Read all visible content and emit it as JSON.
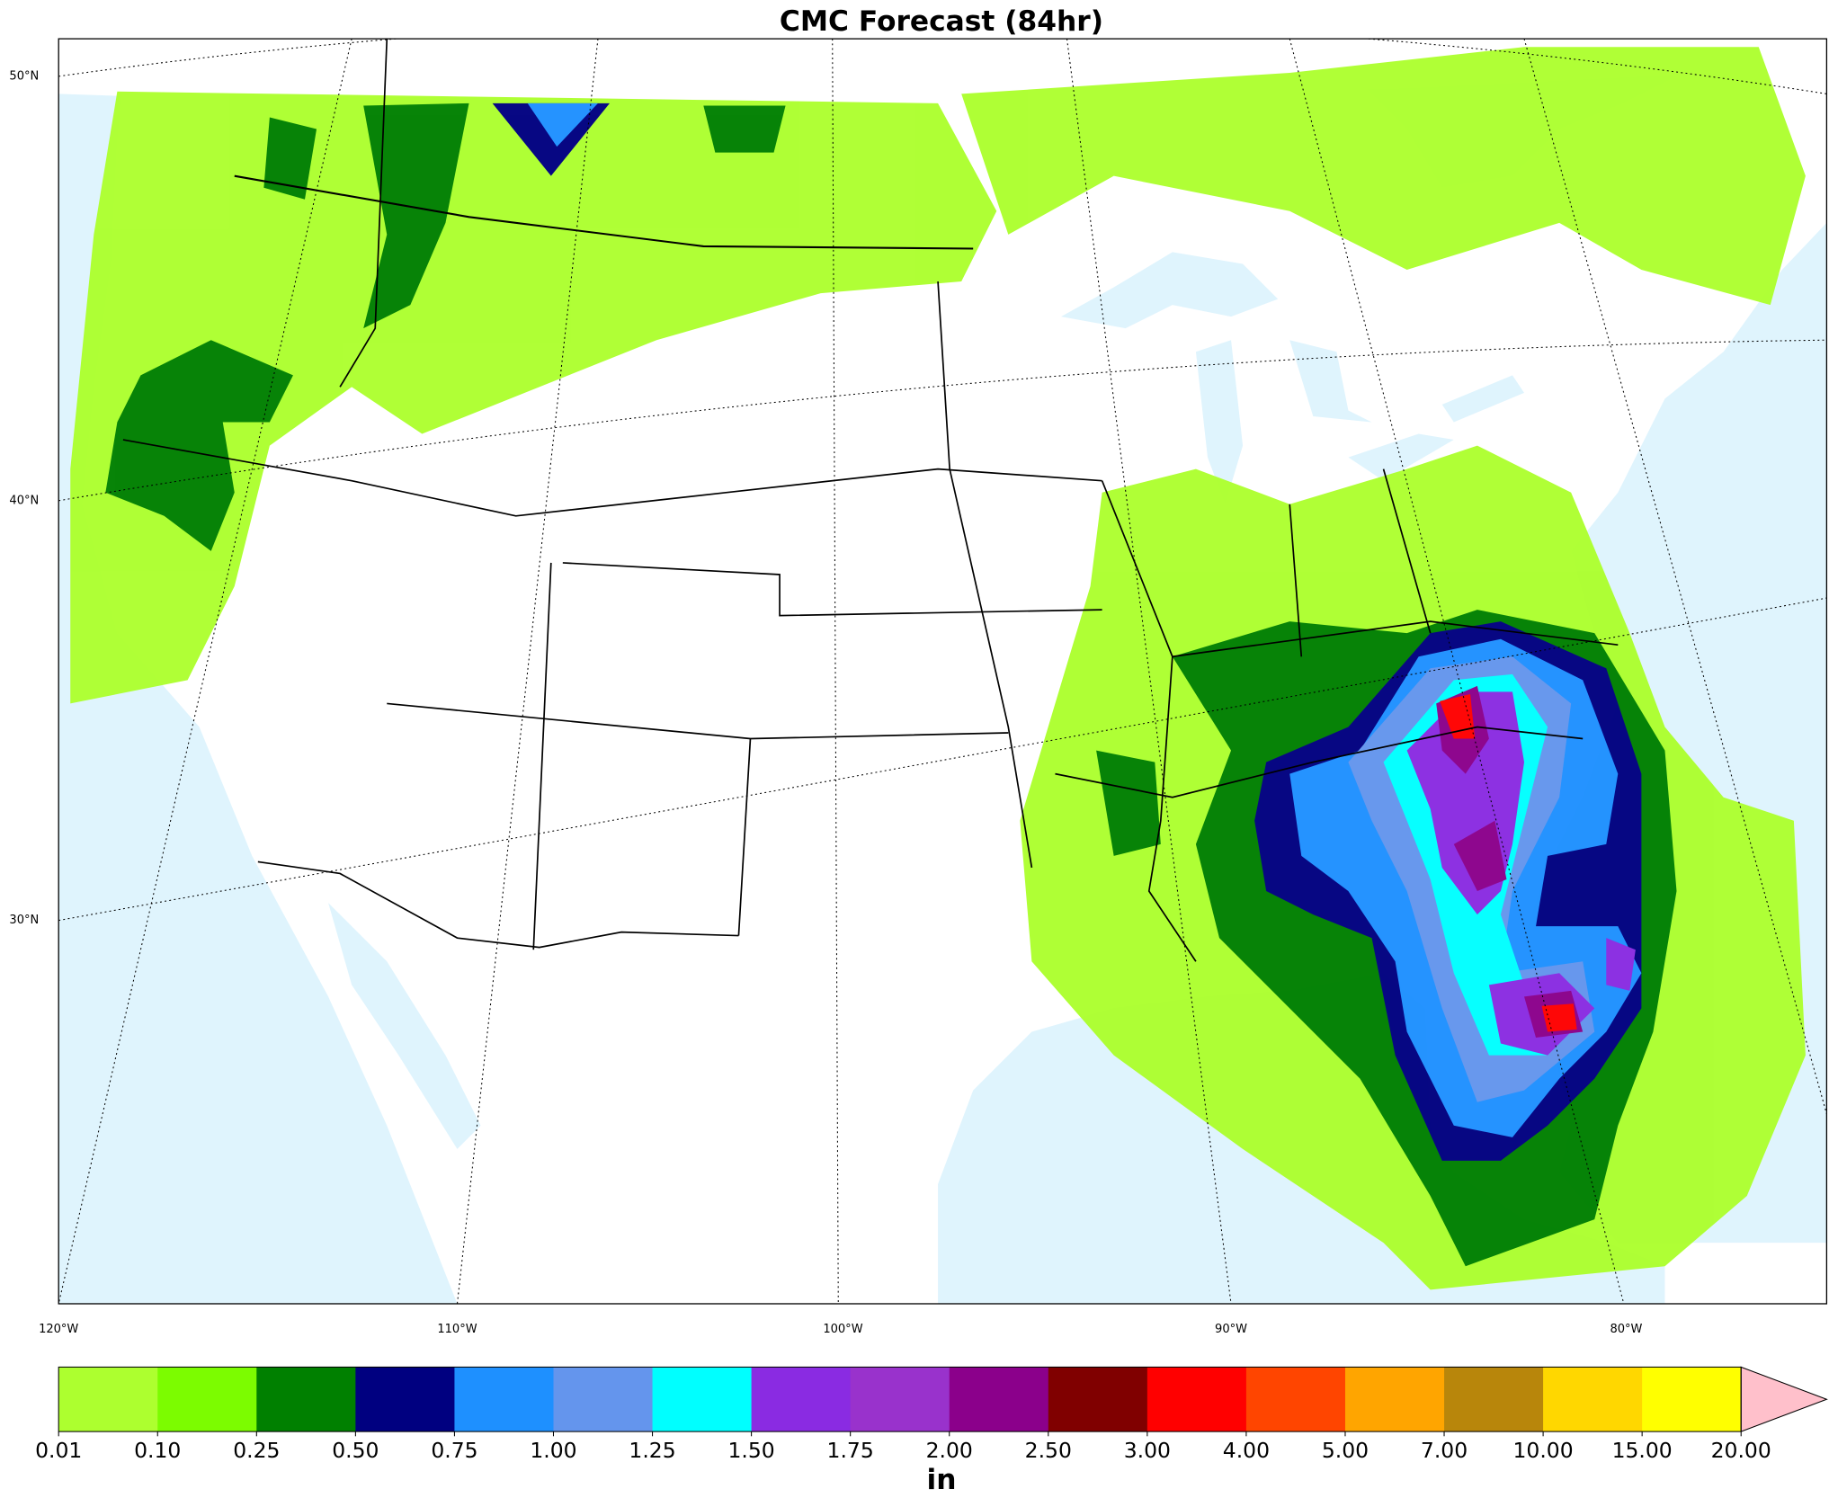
{
  "title": "CMC Forecast (84hr)",
  "lat_labels": [
    "50°N",
    "40°N",
    "30°N"
  ],
  "lon_labels": [
    "120°W",
    "110°W",
    "100°W",
    "90°W",
    "80°W"
  ],
  "colorbar": {
    "levels": [
      0.01,
      {
        "value": 0.1,
        "label": "0.10"
      },
      0.25,
      {
        "value": 0.5,
        "label": "0.50"
      },
      0.75,
      {
        "value": 1,
        "label": "1.00"
      },
      1.25,
      {
        "value": 1.5,
        "label": "1.50"
      },
      1.75,
      {
        "value": 2,
        "label": "2.00"
      },
      {
        "value": 2.5,
        "label": "2.50"
      },
      {
        "value": 3,
        "label": "3.00"
      },
      {
        "value": 4,
        "label": "4.00"
      },
      {
        "value": 5,
        "label": "5.00"
      },
      {
        "value": 7,
        "label": "7.00"
      },
      {
        "value": 10,
        "label": "10.00"
      },
      {
        "value": 15,
        "label": "15.00"
      },
      {
        "value": 20,
        "label": "20.00"
      }
    ],
    "colors": [
      "#adff2f",
      "#7cfc00",
      "#008000",
      "#000080",
      "#1e90ff",
      "#6495ed",
      "#00ffff",
      "#8a2be2",
      "#9932cc",
      "#8b008b",
      "#800000",
      "#ff0000",
      "#ff4500",
      "#ffa500",
      "#b8860b",
      "#ffd700",
      "#ffff00"
    ],
    "extend_color": "#ffc0cb",
    "unit": "in"
  }
}
